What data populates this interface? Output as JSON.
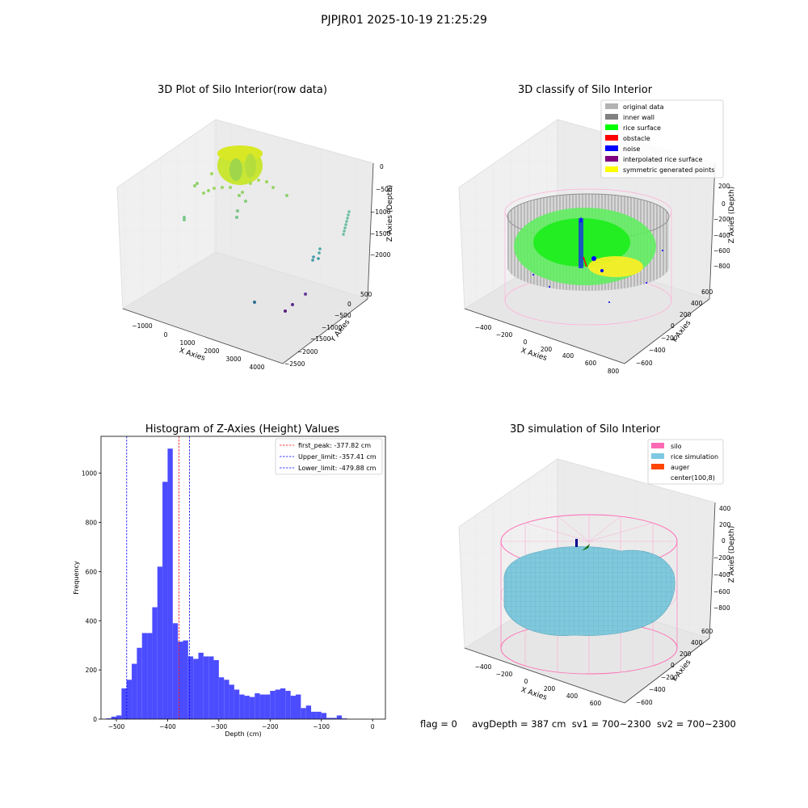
{
  "figure": {
    "suptitle": "PJPJR01 2025-10-19 21:25:29",
    "footer": {
      "flag": "flag = 0",
      "avg_depth": "avgDepth = 387 cm",
      "sv1": "sv1 = 700~2300",
      "sv2": "sv2 = 700~2300"
    }
  },
  "colors": {
    "hist_bar": "#4c4cff",
    "first_peak": "#ff0000",
    "limit_lines": "#0000ff",
    "original_data": "#b3b3b3",
    "inner_wall": "#808080",
    "rice_surface": "#00ff00",
    "obstacle": "#ff0000",
    "noise": "#0000ff",
    "interpolated_rice_surface": "#800080",
    "symmetric_generated_points": "#ffff00",
    "silo": "#ff69b4",
    "rice_simulation": "#7ec8e3",
    "auger": "#ff4500"
  },
  "chart_data": [
    {
      "type": "scatter",
      "projection": "3d",
      "title": "3D Plot of Silo Interior(row data)",
      "xlabel": "X Axies",
      "ylabel": "Y Axies",
      "zlabel": "Z Axies (Depth)",
      "xticks": [
        "−1000",
        "0",
        "1000",
        "2000",
        "3000",
        "4000"
      ],
      "yticks": [
        "500",
        "0",
        "−500",
        "−1000",
        "−1500",
        "−2000",
        "−2500"
      ],
      "zticks": [
        "0",
        "−500",
        "−1000",
        "−1500",
        "−2000"
      ],
      "colormap": "viridis",
      "grid": true
    },
    {
      "type": "scatter",
      "projection": "3d",
      "title": "3D classify of Silo Interior",
      "xlabel": "X Axies",
      "ylabel": "Y Axies",
      "zlabel": "Z Axies (Depth)",
      "xticks": [
        "−400",
        "−200",
        "0",
        "200",
        "400",
        "600",
        "800"
      ],
      "yticks": [
        "600",
        "400",
        "200",
        "0",
        "−200",
        "−400",
        "−600"
      ],
      "zticks": [
        "200",
        "0",
        "−200",
        "−400",
        "−600",
        "−800"
      ],
      "legend": [
        "original data",
        "inner wall",
        "rice surface",
        "obstacle",
        "noise",
        "interpolated rice surface",
        "symmetric generated points"
      ],
      "legend_position": "top-right",
      "grid": true
    },
    {
      "type": "bar",
      "title": "Histogram of Z-Axies (Height) Values",
      "xlabel": "Depth (cm)",
      "ylabel": "Frequency",
      "xlim": [
        -530,
        25
      ],
      "ylim": [
        0,
        1150
      ],
      "xticks": [
        -500,
        -400,
        -300,
        -200,
        -100,
        0
      ],
      "xtick_labels": [
        "−500",
        "−400",
        "−300",
        "−200",
        "−100",
        "0"
      ],
      "yticks": [
        0,
        200,
        400,
        600,
        800,
        1000
      ],
      "bin_width": 10,
      "bin_start": -520,
      "values": [
        3,
        10,
        15,
        125,
        160,
        225,
        290,
        350,
        350,
        455,
        620,
        965,
        1100,
        390,
        315,
        320,
        255,
        245,
        270,
        255,
        255,
        240,
        170,
        160,
        140,
        120,
        100,
        95,
        90,
        105,
        100,
        100,
        115,
        120,
        125,
        115,
        95,
        100,
        45,
        55,
        30,
        30,
        25,
        5,
        5,
        15,
        3
      ],
      "lines": [
        {
          "label": "first_peak: -377.82 cm",
          "x": -377.82,
          "style": "dashed",
          "color": "#ff0000"
        },
        {
          "label": "Upper_limit: -357.41 cm",
          "x": -357.41,
          "style": "dashed",
          "color": "#0000ff"
        },
        {
          "label": "Lower_limit: -479.88 cm",
          "x": -479.88,
          "style": "dashed",
          "color": "#0000ff"
        }
      ],
      "legend_position": "top-right"
    },
    {
      "type": "surface",
      "projection": "3d",
      "title": "3D simulation of Silo Interior",
      "xlabel": "X Axies",
      "ylabel": "Y Axies",
      "zlabel": "Z Axies (Depth)",
      "xticks": [
        "−400",
        "−200",
        "0",
        "200",
        "400",
        "600"
      ],
      "yticks": [
        "600",
        "400",
        "200",
        "0",
        "−200",
        "−400",
        "−600"
      ],
      "zticks": [
        "400",
        "200",
        "0",
        "−200",
        "−400",
        "−600",
        "−800"
      ],
      "legend": [
        "silo",
        "rice simulation",
        "auger",
        "center(100,8)"
      ],
      "legend_position": "top-right",
      "grid": true
    }
  ]
}
